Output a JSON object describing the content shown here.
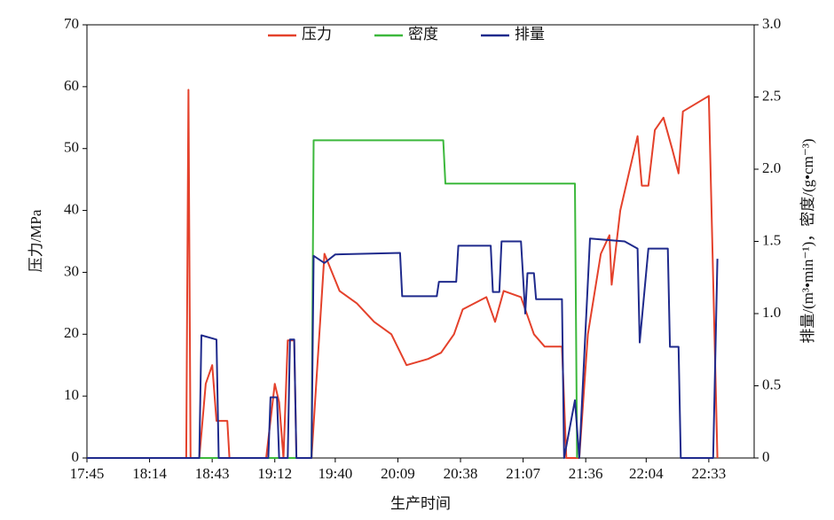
{
  "chart_data": {
    "type": "line",
    "xlabel": "生产时间",
    "ylabel": "压力/MPa",
    "y2label": "排量/(m³•min⁻¹)，密度/(g•cm⁻³)",
    "xlim": [
      "17:45",
      "22:54"
    ],
    "xticks": [
      "17:45",
      "18:14",
      "18:43",
      "19:12",
      "19:40",
      "20:09",
      "20:38",
      "21:07",
      "21:36",
      "22:04",
      "22:33"
    ],
    "ylim": [
      0,
      70
    ],
    "yticks": [
      0,
      10,
      20,
      30,
      40,
      50,
      60,
      70
    ],
    "y2lim": [
      0,
      3
    ],
    "y2ticks": [
      0,
      0.5,
      {
        "value": 1,
        "label": "1.0"
      },
      1.5,
      {
        "value": 2,
        "label": "2.0"
      },
      2.5,
      {
        "value": 3,
        "label": "3.0"
      }
    ],
    "legend": "top",
    "series": [
      {
        "name": "压力",
        "color": "#e4412b",
        "axis": "y",
        "x": [
          "17:45",
          "18:24",
          "18:31",
          "18:32",
          "18:33",
          "18:37",
          "18:40",
          "18:43",
          "18:45",
          "18:50",
          "18:51",
          "19:08",
          "19:12",
          "19:14",
          "19:16",
          "19:18",
          "19:21",
          "19:22",
          "19:29",
          "19:35",
          "19:42",
          "19:50",
          "19:58",
          "20:06",
          "20:13",
          "20:23",
          "20:29",
          "20:35",
          "20:39",
          "20:50",
          "20:54",
          "20:58",
          "21:06",
          "21:12",
          "21:17",
          "21:25",
          "21:27",
          "21:33",
          "21:37",
          "21:43",
          "21:47",
          "21:48",
          "21:52",
          "21:56",
          "22:00",
          "22:02",
          "22:05",
          "22:08",
          "22:12",
          "22:16",
          "22:19",
          "22:21",
          "22:33",
          "22:37"
        ],
        "values": [
          0,
          0,
          0,
          59.5,
          0,
          0,
          12,
          15,
          6,
          6,
          0,
          0,
          12,
          9,
          0,
          19,
          19,
          0,
          0,
          33,
          27,
          25,
          22,
          20,
          15,
          16,
          17,
          20,
          24,
          26,
          22,
          27,
          26,
          20,
          18,
          18,
          0,
          0,
          20,
          33,
          36,
          28,
          40,
          46,
          52,
          44,
          44,
          53,
          55,
          50,
          46,
          56,
          58.5,
          0
        ]
      },
      {
        "name": "密度",
        "color": "#3cb83c",
        "axis": "y2",
        "x": [
          "17:45",
          "19:29",
          "19:30",
          "20:30",
          "20:31",
          "21:31",
          "21:32"
        ],
        "values": [
          0,
          0,
          2.2,
          2.2,
          1.9,
          1.9,
          0
        ]
      },
      {
        "name": "排量",
        "color": "#1f2a8c",
        "axis": "y2",
        "x": [
          "17:45",
          "18:37",
          "18:38",
          "18:45",
          "18:46",
          "19:09",
          "19:10",
          "19:13",
          "19:14",
          "19:18",
          "19:19",
          "19:21",
          "19:22",
          "19:29",
          "19:30",
          "19:35",
          "19:40",
          "20:10",
          "20:11",
          "20:27",
          "20:28",
          "20:36",
          "20:37",
          "20:52",
          "20:53",
          "20:56",
          "20:57",
          "21:06",
          "21:08",
          "21:09",
          "21:12",
          "21:13",
          "21:25",
          "21:26",
          "21:31",
          "21:33",
          "21:38",
          "21:54",
          "22:00",
          "22:01",
          "22:05",
          "22:14",
          "22:15",
          "22:19",
          "22:20",
          "22:35",
          "22:37"
        ],
        "values": [
          0,
          0,
          0.85,
          0.82,
          0,
          0,
          0.42,
          0.42,
          0,
          0,
          0.82,
          0.82,
          0,
          0,
          1.4,
          1.35,
          1.41,
          1.42,
          1.12,
          1.12,
          1.22,
          1.22,
          1.47,
          1.47,
          1.15,
          1.15,
          1.5,
          1.5,
          1.0,
          1.28,
          1.28,
          1.1,
          1.1,
          0,
          0.4,
          0,
          1.52,
          1.5,
          1.45,
          0.8,
          1.45,
          1.45,
          0.77,
          0.77,
          0,
          0,
          1.38
        ]
      }
    ]
  }
}
